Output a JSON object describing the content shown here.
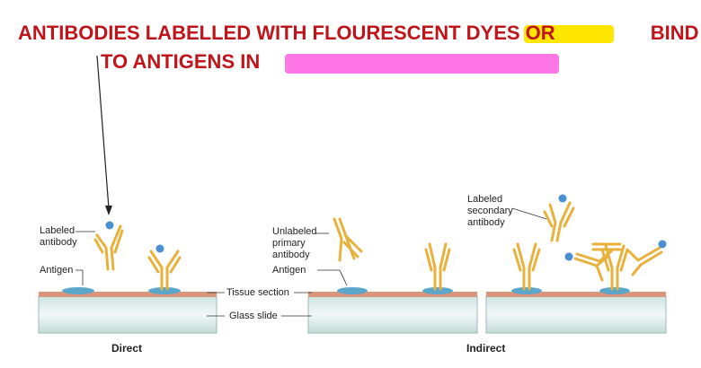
{
  "title": {
    "line1": "ANTIBODIES LABELLED WITH FLOURESCENT DYES OR",
    "line1_end": "BIND",
    "line2": "TO ANTIGENS IN"
  },
  "colors": {
    "title": "#c0141b",
    "highlight_yellow": "#ffe600",
    "highlight_pink": "#ff77e6",
    "antibody": "#e8b13c",
    "antigen": "#5aa7c9",
    "label_dot": "#4a90d0",
    "tissue": "#d8967c",
    "glass": "#cfe3e0"
  },
  "labels": {
    "labeled_antibody": "Labeled antibody",
    "antigen_left": "Antigen",
    "unlabeled_primary": "Unlabeled primary antibody",
    "antigen_mid": "Antigen",
    "tissue_section": "Tissue section",
    "glass_slide": "Glass slide",
    "labeled_secondary": "Labeled secondary antibody"
  },
  "panels": {
    "direct": "Direct",
    "indirect": "Indirect"
  }
}
